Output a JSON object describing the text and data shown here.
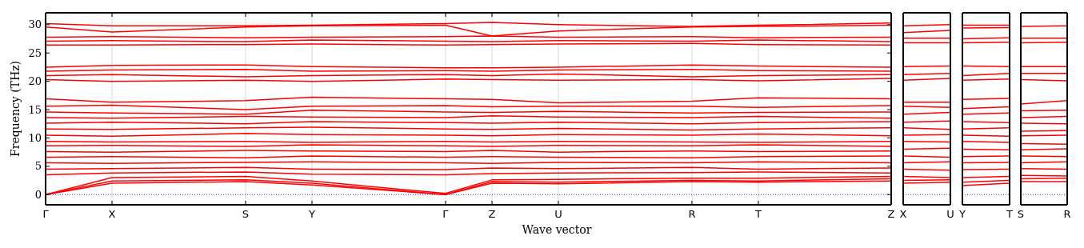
{
  "chart_data": [
    {
      "type": "line",
      "xlabel": "Wave vector",
      "ylabel": "Frequency (THz)",
      "grid": "x",
      "line_style": "solid",
      "categories": [
        "Γ",
        "X",
        "S",
        "Y",
        "Γ",
        "Z",
        "U",
        "R",
        "T",
        "Z"
      ],
      "ylim": [
        -1.8,
        32.1
      ],
      "yticks": [
        0,
        5,
        10,
        15,
        20,
        25,
        30
      ],
      "ref_lines": [
        {
          "axis": "y",
          "value": 0,
          "color": "#0000ff",
          "line_style": "dotted"
        }
      ],
      "series": [
        {
          "color": "#ff0000",
          "values": [
            0,
            2.0,
            2.3,
            1.7,
            0,
            2.0,
            1.9,
            2.3,
            2.2,
            2.4
          ]
        },
        {
          "color": "#ff0000",
          "values": [
            0,
            2.4,
            2.6,
            2.0,
            0,
            2.3,
            2.2,
            2.5,
            2.4,
            2.8
          ]
        },
        {
          "color": "#ff0000",
          "values": [
            0,
            3.0,
            3.2,
            2.4,
            0.2,
            2.6,
            2.7,
            2.9,
            2.9,
            3.2
          ]
        },
        {
          "color": "#ff0000",
          "values": [
            3.5,
            3.8,
            4.0,
            3.6,
            3.5,
            3.7,
            3.8,
            3.9,
            4.0,
            3.8
          ]
        },
        {
          "color": "#ff0000",
          "values": [
            4.5,
            4.6,
            4.8,
            4.5,
            4.4,
            4.7,
            4.6,
            4.8,
            4.5,
            4.7
          ]
        },
        {
          "color": "#ff0000",
          "values": [
            5.6,
            5.5,
            5.7,
            5.8,
            5.6,
            5.5,
            5.7,
            5.6,
            5.8,
            5.6
          ]
        },
        {
          "color": "#ff0000",
          "values": [
            6.6,
            6.7,
            6.5,
            6.8,
            6.6,
            6.7,
            6.6,
            6.5,
            6.7,
            6.8
          ]
        },
        {
          "color": "#ff0000",
          "values": [
            7.6,
            7.5,
            7.8,
            7.7,
            7.6,
            7.8,
            7.5,
            7.7,
            7.6,
            7.7
          ]
        },
        {
          "color": "#ff0000",
          "values": [
            8.6,
            8.7,
            8.5,
            8.8,
            8.6,
            8.5,
            8.7,
            8.6,
            8.8,
            8.5
          ]
        },
        {
          "color": "#ff0000",
          "values": [
            9.4,
            9.3,
            9.4,
            9.2,
            9.4,
            9.3,
            9.4,
            9.3,
            9.2,
            9.4
          ]
        },
        {
          "color": "#ff0000",
          "values": [
            10.5,
            10.3,
            10.8,
            10.6,
            10.5,
            10.4,
            10.6,
            10.5,
            10.7,
            10.4
          ]
        },
        {
          "color": "#ff0000",
          "values": [
            11.6,
            11.5,
            11.8,
            11.9,
            11.6,
            11.5,
            11.7,
            11.4,
            11.6,
            11.8
          ]
        },
        {
          "color": "#ff0000",
          "values": [
            12.6,
            12.8,
            12.5,
            12.9,
            12.7,
            12.6,
            12.8,
            12.5,
            12.7,
            12.9
          ]
        },
        {
          "color": "#ff0000",
          "values": [
            13.6,
            13.5,
            13.8,
            13.7,
            13.6,
            13.9,
            13.7,
            13.6,
            13.8,
            13.5
          ]
        },
        {
          "color": "#ff0000",
          "values": [
            14.6,
            14.4,
            14.2,
            14.9,
            14.6,
            14.5,
            14.7,
            14.4,
            14.5,
            14.6
          ]
        },
        {
          "color": "#ff0000",
          "values": [
            15.6,
            15.8,
            15.0,
            15.6,
            15.7,
            15.5,
            15.6,
            15.6,
            15.4,
            15.7
          ]
        },
        {
          "color": "#ff0000",
          "values": [
            16.9,
            16.3,
            16.6,
            17.2,
            16.9,
            16.8,
            16.2,
            16.5,
            17.1,
            16.9
          ]
        },
        {
          "color": "#ff0000",
          "values": [
            20.3,
            20.0,
            20.2,
            20.0,
            20.4,
            20.3,
            20.2,
            20.3,
            20.1,
            20.5
          ]
        },
        {
          "color": "#ff0000",
          "values": [
            21.0,
            21.2,
            20.8,
            21.0,
            21.2,
            21.0,
            21.3,
            20.8,
            21.0,
            21.2
          ]
        },
        {
          "color": "#ff0000",
          "values": [
            21.8,
            22.0,
            22.1,
            21.8,
            21.9,
            21.8,
            22.0,
            22.1,
            21.9,
            21.8
          ]
        },
        {
          "color": "#ff0000",
          "values": [
            22.5,
            22.8,
            22.9,
            22.6,
            22.4,
            22.4,
            22.5,
            22.9,
            22.7,
            22.5
          ]
        },
        {
          "color": "#ff0000",
          "values": [
            26.4,
            26.4,
            26.5,
            26.6,
            26.4,
            26.5,
            26.6,
            26.7,
            26.5,
            26.4
          ]
        },
        {
          "color": "#ff0000",
          "values": [
            27.1,
            27.2,
            27.0,
            27.3,
            27.1,
            27.0,
            27.2,
            27.1,
            27.3,
            27.0
          ]
        },
        {
          "color": "#ff0000",
          "values": [
            27.8,
            27.9,
            27.7,
            27.8,
            27.9,
            28.0,
            27.8,
            27.9,
            27.7,
            27.8
          ]
        },
        {
          "color": "#ff0000",
          "values": [
            29.6,
            28.7,
            29.6,
            29.8,
            29.9,
            28.0,
            28.9,
            29.6,
            29.7,
            29.9
          ]
        },
        {
          "color": "#ff0000",
          "values": [
            30.2,
            29.8,
            29.8,
            29.9,
            30.2,
            30.4,
            30.0,
            29.7,
            29.9,
            30.3
          ]
        }
      ]
    },
    {
      "type": "line",
      "tick_labels": "x",
      "line_style": "solid",
      "categories": [
        "X",
        "U"
      ],
      "ylim": [
        -1.8,
        32.1
      ],
      "ref_lines": [
        {
          "axis": "y",
          "value": 0,
          "color": "#0000ff",
          "line_style": "dotted"
        }
      ],
      "series": [
        {
          "color": "#ff0000",
          "values": [
            2.0,
            2.2
          ]
        },
        {
          "color": "#ff0000",
          "values": [
            2.5,
            2.6
          ]
        },
        {
          "color": "#ff0000",
          "values": [
            3.2,
            3.0
          ]
        },
        {
          "color": "#ff0000",
          "values": [
            4.5,
            4.3
          ]
        },
        {
          "color": "#ff0000",
          "values": [
            5.6,
            5.8
          ]
        },
        {
          "color": "#ff0000",
          "values": [
            6.8,
            6.6
          ]
        },
        {
          "color": "#ff0000",
          "values": [
            8.0,
            8.2
          ]
        },
        {
          "color": "#ff0000",
          "values": [
            9.4,
            9.3
          ]
        },
        {
          "color": "#ff0000",
          "values": [
            10.5,
            10.6
          ]
        },
        {
          "color": "#ff0000",
          "values": [
            11.8,
            11.5
          ]
        },
        {
          "color": "#ff0000",
          "values": [
            12.8,
            13.0
          ]
        },
        {
          "color": "#ff0000",
          "values": [
            14.2,
            14.5
          ]
        },
        {
          "color": "#ff0000",
          "values": [
            15.6,
            15.4
          ]
        },
        {
          "color": "#ff0000",
          "values": [
            16.3,
            16.3
          ]
        },
        {
          "color": "#ff0000",
          "values": [
            20.2,
            20.5
          ]
        },
        {
          "color": "#ff0000",
          "values": [
            21.2,
            21.4
          ]
        },
        {
          "color": "#ff0000",
          "values": [
            22.6,
            22.7
          ]
        },
        {
          "color": "#ff0000",
          "values": [
            26.8,
            26.8
          ]
        },
        {
          "color": "#ff0000",
          "values": [
            27.6,
            27.6
          ]
        },
        {
          "color": "#ff0000",
          "values": [
            28.6,
            29.0
          ]
        },
        {
          "color": "#ff0000",
          "values": [
            29.8,
            30.0
          ]
        }
      ]
    },
    {
      "type": "line",
      "tick_labels": "x",
      "line_style": "solid",
      "categories": [
        "Y",
        "T"
      ],
      "ylim": [
        -1.8,
        32.1
      ],
      "ref_lines": [
        {
          "axis": "y",
          "value": 0,
          "color": "#0000ff",
          "line_style": "dotted"
        }
      ],
      "series": [
        {
          "color": "#ff0000",
          "values": [
            1.6,
            2.0
          ]
        },
        {
          "color": "#ff0000",
          "values": [
            2.2,
            2.5
          ]
        },
        {
          "color": "#ff0000",
          "values": [
            3.0,
            3.2
          ]
        },
        {
          "color": "#ff0000",
          "values": [
            4.4,
            4.5
          ]
        },
        {
          "color": "#ff0000",
          "values": [
            5.6,
            5.7
          ]
        },
        {
          "color": "#ff0000",
          "values": [
            6.7,
            6.8
          ]
        },
        {
          "color": "#ff0000",
          "values": [
            8.0,
            7.9
          ]
        },
        {
          "color": "#ff0000",
          "values": [
            9.4,
            9.2
          ]
        },
        {
          "color": "#ff0000",
          "values": [
            10.5,
            10.3
          ]
        },
        {
          "color": "#ff0000",
          "values": [
            11.6,
            11.8
          ]
        },
        {
          "color": "#ff0000",
          "values": [
            12.9,
            12.7
          ]
        },
        {
          "color": "#ff0000",
          "values": [
            14.2,
            14.4
          ]
        },
        {
          "color": "#ff0000",
          "values": [
            15.2,
            15.5
          ]
        },
        {
          "color": "#ff0000",
          "values": [
            16.8,
            17.0
          ]
        },
        {
          "color": "#ff0000",
          "values": [
            20.2,
            20.4
          ]
        },
        {
          "color": "#ff0000",
          "values": [
            21.0,
            21.4
          ]
        },
        {
          "color": "#ff0000",
          "values": [
            22.7,
            22.6
          ]
        },
        {
          "color": "#ff0000",
          "values": [
            26.8,
            26.9
          ]
        },
        {
          "color": "#ff0000",
          "values": [
            27.5,
            27.7
          ]
        },
        {
          "color": "#ff0000",
          "values": [
            29.4,
            29.5
          ]
        },
        {
          "color": "#ff0000",
          "values": [
            29.9,
            29.9
          ]
        }
      ]
    },
    {
      "type": "line",
      "tick_labels": "x",
      "line_style": "solid",
      "categories": [
        "S",
        "R"
      ],
      "ylim": [
        -1.8,
        32.1
      ],
      "ref_lines": [
        {
          "axis": "y",
          "value": 0,
          "color": "#0000ff",
          "line_style": "dotted"
        }
      ],
      "series": [
        {
          "color": "#ff0000",
          "values": [
            2.3,
            2.3
          ]
        },
        {
          "color": "#ff0000",
          "values": [
            2.8,
            2.9
          ]
        },
        {
          "color": "#ff0000",
          "values": [
            3.4,
            3.3
          ]
        },
        {
          "color": "#ff0000",
          "values": [
            4.6,
            4.5
          ]
        },
        {
          "color": "#ff0000",
          "values": [
            5.6,
            5.8
          ]
        },
        {
          "color": "#ff0000",
          "values": [
            6.8,
            6.7
          ]
        },
        {
          "color": "#ff0000",
          "values": [
            7.9,
            8.1
          ]
        },
        {
          "color": "#ff0000",
          "values": [
            9.0,
            8.9
          ]
        },
        {
          "color": "#ff0000",
          "values": [
            10.4,
            10.5
          ]
        },
        {
          "color": "#ff0000",
          "values": [
            11.2,
            11.3
          ]
        },
        {
          "color": "#ff0000",
          "values": [
            12.6,
            12.5
          ]
        },
        {
          "color": "#ff0000",
          "values": [
            13.6,
            13.8
          ]
        },
        {
          "color": "#ff0000",
          "values": [
            14.8,
            14.9
          ]
        },
        {
          "color": "#ff0000",
          "values": [
            16.0,
            16.6
          ]
        },
        {
          "color": "#ff0000",
          "values": [
            20.3,
            20.1
          ]
        },
        {
          "color": "#ff0000",
          "values": [
            21.4,
            21.4
          ]
        },
        {
          "color": "#ff0000",
          "values": [
            22.6,
            22.6
          ]
        },
        {
          "color": "#ff0000",
          "values": [
            26.8,
            26.9
          ]
        },
        {
          "color": "#ff0000",
          "values": [
            27.6,
            27.6
          ]
        },
        {
          "color": "#ff0000",
          "values": [
            29.7,
            29.8
          ]
        }
      ]
    }
  ]
}
